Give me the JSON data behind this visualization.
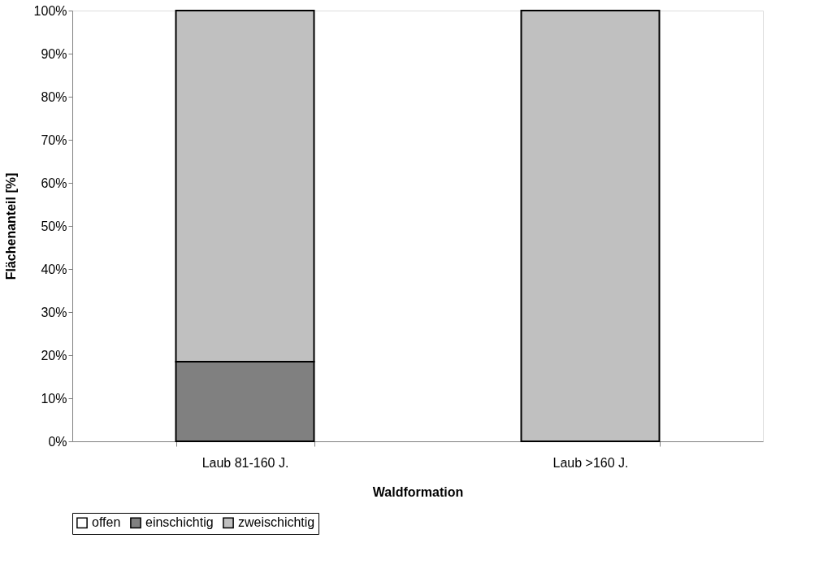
{
  "chart_data": {
    "type": "bar",
    "stacked": true,
    "xlabel": "Waldformation",
    "ylabel": "Flächenanteil [%]",
    "categories": [
      "Laub 81-160 J.",
      "Laub >160 J."
    ],
    "series": [
      {
        "name": "offen",
        "color": "#ffffff",
        "values": [
          0,
          0
        ]
      },
      {
        "name": "einschichtig",
        "color": "#808080",
        "values": [
          18.5,
          0
        ]
      },
      {
        "name": "zweischichtig",
        "color": "#c0c0c0",
        "values": [
          81.5,
          100
        ]
      }
    ],
    "ylim": [
      0,
      100
    ],
    "yticks": [
      {
        "value": 0,
        "label": "0%"
      },
      {
        "value": 10,
        "label": "10%"
      },
      {
        "value": 20,
        "label": "20%"
      },
      {
        "value": 30,
        "label": "30%"
      },
      {
        "value": 40,
        "label": "40%"
      },
      {
        "value": 50,
        "label": "50%"
      },
      {
        "value": 60,
        "label": "60%"
      },
      {
        "value": 70,
        "label": "70%"
      },
      {
        "value": 80,
        "label": "80%"
      },
      {
        "value": 90,
        "label": "90%"
      },
      {
        "value": 100,
        "label": "100%"
      }
    ],
    "grid": false,
    "legend": "bottom"
  }
}
